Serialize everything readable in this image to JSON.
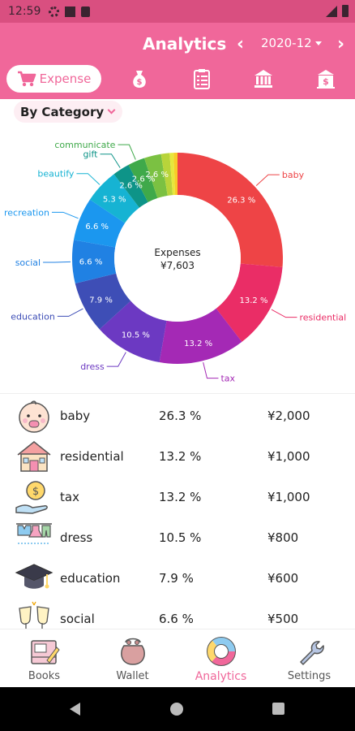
{
  "status_bar": {
    "time": "12:59"
  },
  "header": {
    "title": "Analytics",
    "month": "2020-12",
    "prev_icon": "chevron-left-icon",
    "next_icon": "chevron-right-icon"
  },
  "tabs": [
    {
      "label": "Expense",
      "icon": "cart-icon",
      "active": true
    },
    {
      "label": "",
      "icon": "money-bag-icon"
    },
    {
      "label": "",
      "icon": "clipboard-icon"
    },
    {
      "label": "",
      "icon": "bank-icon"
    },
    {
      "label": "",
      "icon": "building-icon"
    }
  ],
  "filter": {
    "label": "By Category"
  },
  "chart_data": {
    "type": "pie",
    "center_title": "Expenses",
    "center_value": "¥7,603",
    "slices": [
      {
        "name": "baby",
        "value": 26.3,
        "label": "26.3 %",
        "color": "#ee4446"
      },
      {
        "name": "residential",
        "value": 13.2,
        "label": "13.2 %",
        "color": "#ea2d66"
      },
      {
        "name": "tax",
        "value": 13.2,
        "label": "13.2 %",
        "color": "#a429b5"
      },
      {
        "name": "dress",
        "value": 10.5,
        "label": "10.5 %",
        "color": "#6c39c2"
      },
      {
        "name": "education",
        "value": 7.9,
        "label": "7.9 %",
        "color": "#3e4eb6"
      },
      {
        "name": "social",
        "value": 6.6,
        "label": "6.6 %",
        "color": "#2081e3"
      },
      {
        "name": "recreation",
        "value": 6.6,
        "label": "6.6 %",
        "color": "#1b97ef"
      },
      {
        "name": "beautify",
        "value": 5.3,
        "label": "5.3 %",
        "color": "#16b3d3"
      },
      {
        "name": "gift",
        "value": 2.6,
        "label": "2.6 %",
        "color": "#0e9488"
      },
      {
        "name": "communicate",
        "value": 2.6,
        "label": "2.6 %",
        "color": "#3fa94a"
      },
      {
        "name": "",
        "value": 2.6,
        "label": "2.6 %",
        "color": "#7bc142"
      },
      {
        "name": "",
        "value": 1.3,
        "label": "",
        "color": "#b8d43a"
      },
      {
        "name": "",
        "value": 0.6,
        "label": "",
        "color": "#e7e73c"
      },
      {
        "name": "",
        "value": 0.6,
        "label": "",
        "color": "#f8cc27"
      }
    ]
  },
  "list": [
    {
      "name": "baby",
      "pct": "26.3 %",
      "amount": "¥2,000",
      "icon": "baby-icon"
    },
    {
      "name": "residential",
      "pct": "13.2 %",
      "amount": "¥1,000",
      "icon": "house-icon"
    },
    {
      "name": "tax",
      "pct": "13.2 %",
      "amount": "¥1,000",
      "icon": "coin-hand-icon"
    },
    {
      "name": "dress",
      "pct": "10.5 %",
      "amount": "¥800",
      "icon": "clothes-icon"
    },
    {
      "name": "education",
      "pct": "7.9 %",
      "amount": "¥600",
      "icon": "graduation-cap-icon"
    },
    {
      "name": "social",
      "pct": "6.6 %",
      "amount": "¥500",
      "icon": "cheers-icon"
    }
  ],
  "bottom_nav": [
    {
      "label": "Books",
      "icon": "book-icon",
      "active": false
    },
    {
      "label": "Wallet",
      "icon": "wallet-icon",
      "active": false
    },
    {
      "label": "Analytics",
      "icon": "donut-chart-icon",
      "active": true
    },
    {
      "label": "Settings",
      "icon": "wrench-icon",
      "active": false
    }
  ],
  "colors": {
    "primary": "#f0679a",
    "status_bar": "#d94f80"
  }
}
